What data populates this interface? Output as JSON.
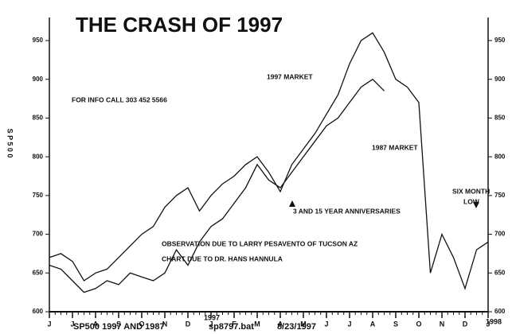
{
  "chart_data": {
    "type": "line",
    "title": "THE CRASH OF 1997",
    "y_label": "S P 5 0 0",
    "footer": [
      "SP500  1997 AND 1987",
      "sp8797.bat",
      "8/23/1997"
    ],
    "year_labels": [
      "1997",
      "1998"
    ],
    "annotations": [
      "FOR INFO CALL 303 452 5566",
      "1997 MARKET",
      "1987 MARKET",
      "3 AND 15 YEAR ANNIVERSARIES",
      "SIX MONTH",
      "LOW",
      "OBSERVATION DUE TO LARRY PESAVENTO OF TUCSON AZ",
      "CHART DUE TO DR. HANS HANNULA"
    ],
    "xlim": [
      0,
      19
    ],
    "xticks": [
      {
        "value": 0,
        "label": "J"
      },
      {
        "value": 1,
        "label": "J"
      },
      {
        "value": 2,
        "label": "A"
      },
      {
        "value": 3,
        "label": "S"
      },
      {
        "value": 4,
        "label": "O"
      },
      {
        "value": 5,
        "label": "N"
      },
      {
        "value": 6,
        "label": "D"
      },
      {
        "value": 7,
        "label": "J"
      },
      {
        "value": 8,
        "label": "F"
      },
      {
        "value": 9,
        "label": "M"
      },
      {
        "value": 10,
        "label": "A"
      },
      {
        "value": 11,
        "label": "M"
      },
      {
        "value": 12,
        "label": "J"
      },
      {
        "value": 13,
        "label": "J"
      },
      {
        "value": 14,
        "label": "A"
      },
      {
        "value": 15,
        "label": "S"
      },
      {
        "value": 16,
        "label": "O"
      },
      {
        "value": 17,
        "label": "N"
      },
      {
        "value": 18,
        "label": "D"
      },
      {
        "value": 19,
        "label": "J"
      }
    ],
    "ylim": [
      600,
      950
    ],
    "yticks": [
      600,
      650,
      700,
      750,
      800,
      850,
      900,
      950
    ],
    "x": [
      0,
      0.5,
      1,
      1.5,
      2,
      2.5,
      3,
      3.5,
      4,
      4.5,
      5,
      5.5,
      6,
      6.5,
      7,
      7.5,
      8,
      8.5,
      9,
      9.5,
      10,
      10.5,
      11,
      11.5,
      12,
      12.5,
      13,
      13.5,
      14,
      14.5,
      15,
      15.5,
      16,
      16.5,
      17,
      17.5,
      18,
      18.5,
      19
    ],
    "series": [
      {
        "name": "1987 MARKET",
        "color": "#111111",
        "values": [
          670,
          675,
          665,
          640,
          650,
          655,
          670,
          685,
          700,
          710,
          735,
          750,
          760,
          730,
          750,
          765,
          775,
          790,
          800,
          780,
          755,
          790,
          810,
          830,
          855,
          880,
          920,
          950,
          960,
          935,
          900,
          890,
          870,
          650,
          700,
          670,
          630,
          680,
          690
        ]
      },
      {
        "name": "1997 MARKET",
        "color": "#111111",
        "values": [
          660,
          655,
          640,
          625,
          630,
          640,
          635,
          650,
          645,
          640,
          650,
          680,
          660,
          690,
          710,
          720,
          740,
          760,
          790,
          770,
          760,
          780,
          800,
          820,
          840,
          850,
          870,
          890,
          900,
          885,
          null,
          null,
          null,
          null,
          null,
          null,
          null,
          null,
          null
        ]
      }
    ]
  }
}
